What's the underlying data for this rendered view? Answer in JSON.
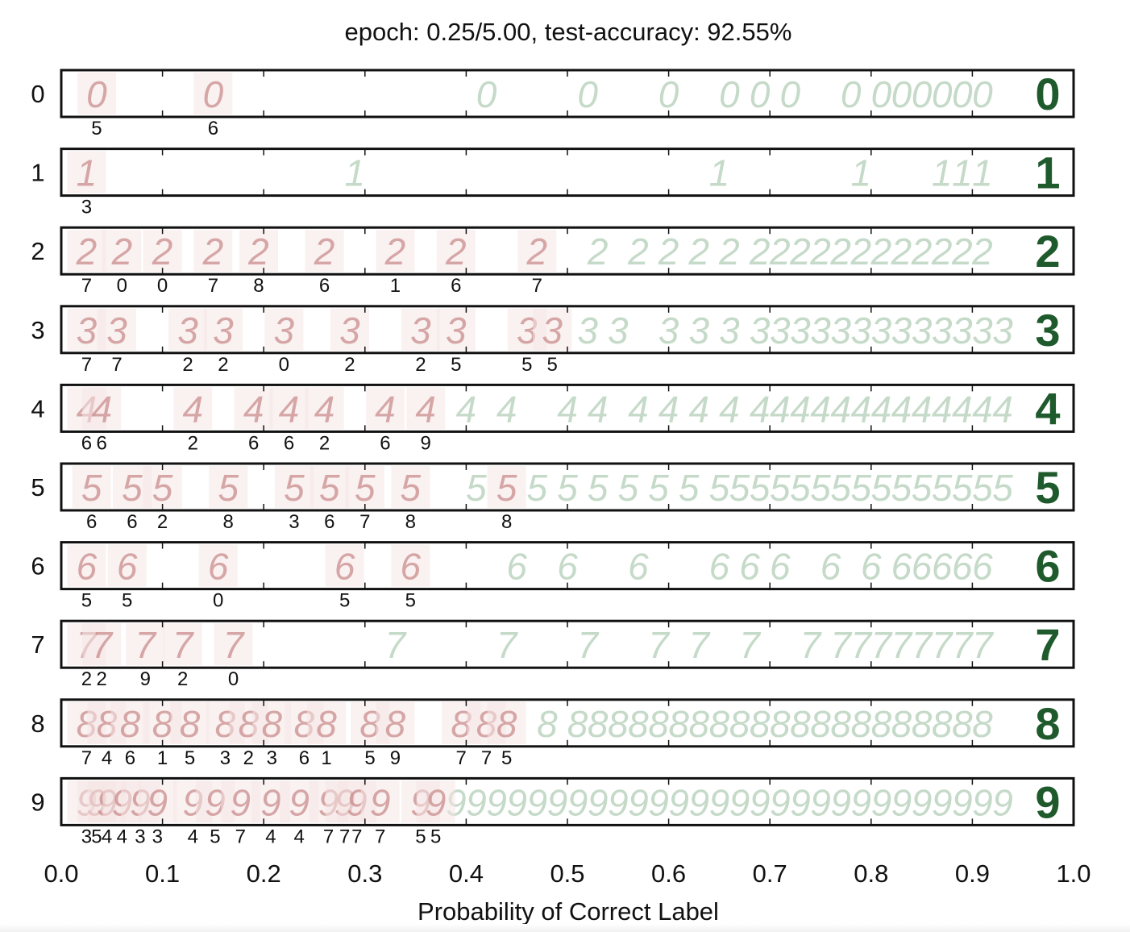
{
  "chart_data": {
    "type": "scatter",
    "title": "epoch: 0.25/5.00, test-accuracy: 92.55%",
    "xlabel": "Probability of Correct Label",
    "ylabel": "",
    "xlim": [
      0.0,
      1.0
    ],
    "xticks": [
      "0.0",
      "0.1",
      "0.2",
      "0.3",
      "0.4",
      "0.5",
      "0.6",
      "0.7",
      "0.8",
      "0.9",
      "1.0"
    ],
    "grid": false,
    "colors": {
      "misclassified": "#c98c8c",
      "correct": "#7fae86",
      "prototype": "#1f5a2d",
      "text": "#111111"
    },
    "rows": [
      {
        "label": "0",
        "misclassified": [
          {
            "x": 0.035,
            "pred": "5"
          },
          {
            "x": 0.15,
            "pred": "6"
          }
        ],
        "correct": [
          0.42,
          0.52,
          0.6,
          0.66,
          0.69,
          0.72,
          0.78,
          0.81,
          0.83,
          0.85,
          0.87,
          0.89,
          0.91
        ]
      },
      {
        "label": "1",
        "misclassified": [
          {
            "x": 0.025,
            "pred": "3"
          }
        ],
        "correct": [
          0.29,
          0.65,
          0.79,
          0.87,
          0.89,
          0.91
        ]
      },
      {
        "label": "2",
        "misclassified": [
          {
            "x": 0.025,
            "pred": "7"
          },
          {
            "x": 0.06,
            "pred": "0"
          },
          {
            "x": 0.1,
            "pred": "0"
          },
          {
            "x": 0.15,
            "pred": "7"
          },
          {
            "x": 0.195,
            "pred": "8"
          },
          {
            "x": 0.26,
            "pred": "6"
          },
          {
            "x": 0.33,
            "pred": "1"
          },
          {
            "x": 0.39,
            "pred": "6"
          },
          {
            "x": 0.47,
            "pred": "7"
          }
        ],
        "correct": [
          0.53,
          0.57,
          0.6,
          0.63,
          0.66,
          0.69,
          0.71,
          0.73,
          0.75,
          0.77,
          0.79,
          0.81,
          0.83,
          0.85,
          0.87,
          0.89,
          0.91
        ]
      },
      {
        "label": "3",
        "misclassified": [
          {
            "x": 0.025,
            "pred": "7"
          },
          {
            "x": 0.055,
            "pred": "7"
          },
          {
            "x": 0.125,
            "pred": "2"
          },
          {
            "x": 0.16,
            "pred": "2"
          },
          {
            "x": 0.22,
            "pred": "0"
          },
          {
            "x": 0.285,
            "pred": "2"
          },
          {
            "x": 0.355,
            "pred": "2"
          },
          {
            "x": 0.39,
            "pred": "5"
          },
          {
            "x": 0.46,
            "pred": "5"
          },
          {
            "x": 0.485,
            "pred": "5"
          }
        ],
        "correct": [
          0.52,
          0.55,
          0.6,
          0.63,
          0.66,
          0.69,
          0.71,
          0.73,
          0.75,
          0.77,
          0.79,
          0.81,
          0.83,
          0.85,
          0.87,
          0.89,
          0.91,
          0.93
        ]
      },
      {
        "label": "4",
        "misclassified": [
          {
            "x": 0.025,
            "pred": "6"
          },
          {
            "x": 0.04,
            "pred": "6"
          },
          {
            "x": 0.13,
            "pred": "2"
          },
          {
            "x": 0.19,
            "pred": "6"
          },
          {
            "x": 0.225,
            "pred": "6"
          },
          {
            "x": 0.26,
            "pred": "2"
          },
          {
            "x": 0.32,
            "pred": "6"
          },
          {
            "x": 0.36,
            "pred": "9"
          }
        ],
        "correct": [
          0.4,
          0.44,
          0.5,
          0.53,
          0.57,
          0.6,
          0.63,
          0.66,
          0.69,
          0.71,
          0.73,
          0.75,
          0.77,
          0.79,
          0.81,
          0.83,
          0.85,
          0.87,
          0.89,
          0.91,
          0.93
        ]
      },
      {
        "label": "5",
        "misclassified": [
          {
            "x": 0.03,
            "pred": "6"
          },
          {
            "x": 0.07,
            "pred": "6"
          },
          {
            "x": 0.1,
            "pred": "2"
          },
          {
            "x": 0.165,
            "pred": "8"
          },
          {
            "x": 0.23,
            "pred": "3"
          },
          {
            "x": 0.265,
            "pred": "6"
          },
          {
            "x": 0.3,
            "pred": "7"
          },
          {
            "x": 0.345,
            "pred": "8"
          },
          {
            "x": 0.44,
            "pred": "8"
          }
        ],
        "correct": [
          0.41,
          0.47,
          0.5,
          0.53,
          0.56,
          0.59,
          0.62,
          0.65,
          0.67,
          0.69,
          0.71,
          0.73,
          0.75,
          0.77,
          0.79,
          0.81,
          0.83,
          0.85,
          0.87,
          0.89,
          0.91,
          0.93
        ]
      },
      {
        "label": "6",
        "misclassified": [
          {
            "x": 0.025,
            "pred": "5"
          },
          {
            "x": 0.065,
            "pred": "5"
          },
          {
            "x": 0.155,
            "pred": "0"
          },
          {
            "x": 0.28,
            "pred": "5"
          },
          {
            "x": 0.345,
            "pred": "5"
          }
        ],
        "correct": [
          0.45,
          0.5,
          0.57,
          0.65,
          0.68,
          0.71,
          0.76,
          0.8,
          0.83,
          0.85,
          0.87,
          0.89,
          0.91
        ]
      },
      {
        "label": "7",
        "misclassified": [
          {
            "x": 0.025,
            "pred": "2"
          },
          {
            "x": 0.04,
            "pred": "2"
          },
          {
            "x": 0.083,
            "pred": "9"
          },
          {
            "x": 0.12,
            "pred": "2"
          },
          {
            "x": 0.17,
            "pred": "0"
          }
        ],
        "correct": [
          0.33,
          0.44,
          0.52,
          0.59,
          0.63,
          0.68,
          0.74,
          0.77,
          0.79,
          0.81,
          0.83,
          0.85,
          0.87,
          0.89,
          0.91
        ]
      },
      {
        "label": "8",
        "misclassified": [
          {
            "x": 0.025,
            "pred": "7"
          },
          {
            "x": 0.045,
            "pred": "4"
          },
          {
            "x": 0.068,
            "pred": "6"
          },
          {
            "x": 0.1,
            "pred": "1"
          },
          {
            "x": 0.127,
            "pred": "5"
          },
          {
            "x": 0.162,
            "pred": "3"
          },
          {
            "x": 0.185,
            "pred": "2"
          },
          {
            "x": 0.208,
            "pred": "3"
          },
          {
            "x": 0.24,
            "pred": "6"
          },
          {
            "x": 0.262,
            "pred": "1"
          },
          {
            "x": 0.305,
            "pred": "5"
          },
          {
            "x": 0.33,
            "pred": "9"
          },
          {
            "x": 0.395,
            "pred": "7"
          },
          {
            "x": 0.42,
            "pred": "7"
          },
          {
            "x": 0.44,
            "pred": "5"
          }
        ],
        "correct": [
          0.48,
          0.51,
          0.53,
          0.55,
          0.57,
          0.59,
          0.61,
          0.63,
          0.65,
          0.67,
          0.69,
          0.71,
          0.73,
          0.75,
          0.77,
          0.79,
          0.81,
          0.83,
          0.85,
          0.87,
          0.89,
          0.91
        ]
      },
      {
        "label": "9",
        "misclassified": [
          {
            "x": 0.025,
            "pred": "3"
          },
          {
            "x": 0.035,
            "pred": "5"
          },
          {
            "x": 0.045,
            "pred": "4"
          },
          {
            "x": 0.06,
            "pred": "4"
          },
          {
            "x": 0.078,
            "pred": "3"
          },
          {
            "x": 0.095,
            "pred": "3"
          },
          {
            "x": 0.13,
            "pred": "4"
          },
          {
            "x": 0.152,
            "pred": "5"
          },
          {
            "x": 0.177,
            "pred": "7"
          },
          {
            "x": 0.207,
            "pred": "4"
          },
          {
            "x": 0.235,
            "pred": "4"
          },
          {
            "x": 0.264,
            "pred": "7"
          },
          {
            "x": 0.28,
            "pred": "7"
          },
          {
            "x": 0.292,
            "pred": "7"
          },
          {
            "x": 0.315,
            "pred": "7"
          },
          {
            "x": 0.355,
            "pred": "5"
          },
          {
            "x": 0.37,
            "pred": "5"
          }
        ],
        "correct": [
          0.39,
          0.41,
          0.43,
          0.45,
          0.47,
          0.49,
          0.51,
          0.53,
          0.55,
          0.57,
          0.59,
          0.61,
          0.63,
          0.65,
          0.67,
          0.69,
          0.71,
          0.73,
          0.75,
          0.77,
          0.79,
          0.81,
          0.83,
          0.85,
          0.87,
          0.89,
          0.91,
          0.93
        ]
      }
    ]
  }
}
